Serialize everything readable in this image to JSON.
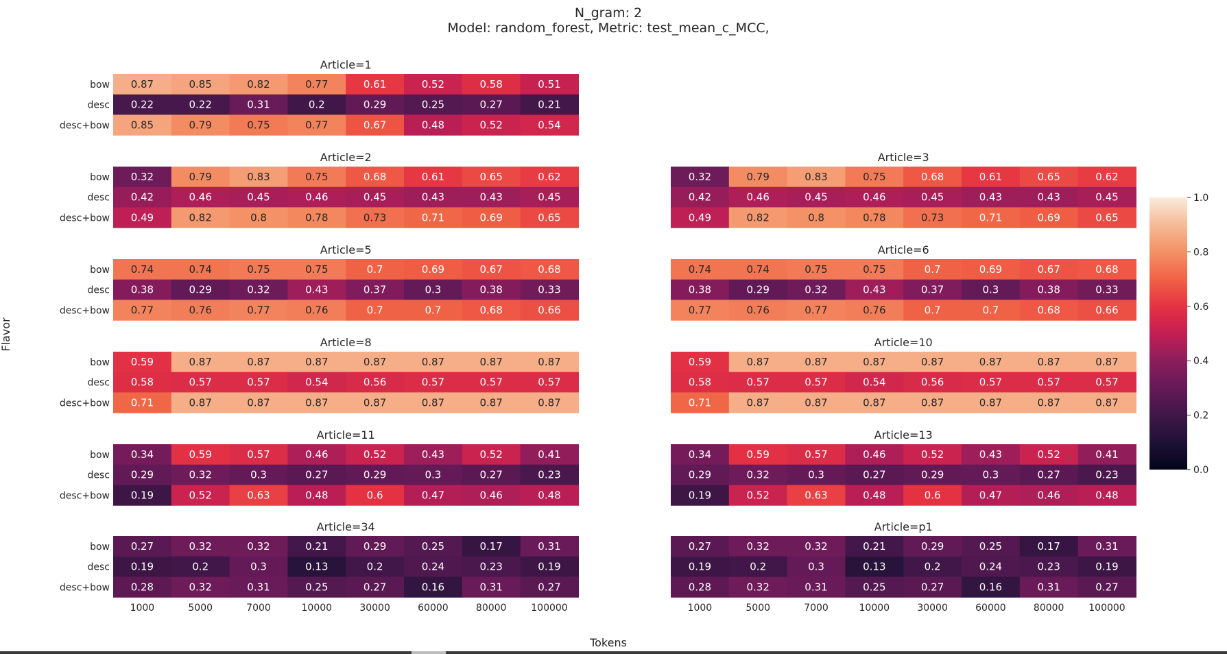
{
  "chart_data": {
    "type": "heatmap",
    "title_lines": [
      "N_gram: 2",
      "Model: random_forest, Metric: test_mean_c_MCC,"
    ],
    "xlabel": "Tokens",
    "ylabel": "Flavor",
    "x_categories": [
      "1000",
      "5000",
      "7000",
      "10000",
      "30000",
      "60000",
      "80000",
      "100000"
    ],
    "y_categories": [
      "bow",
      "desc",
      "desc+bow"
    ],
    "color_range": [
      0.0,
      1.0
    ],
    "colorbar_ticks": [
      "0.0",
      "0.2",
      "0.4",
      "0.6",
      "0.8",
      "1.0"
    ],
    "panels": [
      {
        "title": "Article=1",
        "values": [
          [
            0.87,
            0.85,
            0.82,
            0.77,
            0.61,
            0.52,
            0.58,
            0.51
          ],
          [
            0.22,
            0.22,
            0.31,
            0.2,
            0.29,
            0.25,
            0.27,
            0.21
          ],
          [
            0.85,
            0.79,
            0.75,
            0.77,
            0.67,
            0.48,
            0.52,
            0.54
          ]
        ]
      },
      {
        "title": "Article=2",
        "values": [
          [
            0.32,
            0.79,
            0.83,
            0.75,
            0.68,
            0.61,
            0.65,
            0.62
          ],
          [
            0.42,
            0.46,
            0.45,
            0.46,
            0.45,
            0.43,
            0.43,
            0.45
          ],
          [
            0.49,
            0.82,
            0.8,
            0.78,
            0.73,
            0.71,
            0.69,
            0.65
          ]
        ]
      },
      {
        "title": "Article=3",
        "values": [
          [
            0.32,
            0.79,
            0.83,
            0.75,
            0.68,
            0.61,
            0.65,
            0.62
          ],
          [
            0.42,
            0.46,
            0.45,
            0.46,
            0.45,
            0.43,
            0.43,
            0.45
          ],
          [
            0.49,
            0.82,
            0.8,
            0.78,
            0.73,
            0.71,
            0.69,
            0.65
          ]
        ]
      },
      {
        "title": "Article=5",
        "values": [
          [
            0.74,
            0.74,
            0.75,
            0.75,
            0.7,
            0.69,
            0.67,
            0.68
          ],
          [
            0.38,
            0.29,
            0.32,
            0.43,
            0.37,
            0.3,
            0.38,
            0.33
          ],
          [
            0.77,
            0.76,
            0.77,
            0.76,
            0.7,
            0.7,
            0.68,
            0.66
          ]
        ]
      },
      {
        "title": "Article=6",
        "values": [
          [
            0.74,
            0.74,
            0.75,
            0.75,
            0.7,
            0.69,
            0.67,
            0.68
          ],
          [
            0.38,
            0.29,
            0.32,
            0.43,
            0.37,
            0.3,
            0.38,
            0.33
          ],
          [
            0.77,
            0.76,
            0.77,
            0.76,
            0.7,
            0.7,
            0.68,
            0.66
          ]
        ]
      },
      {
        "title": "Article=8",
        "values": [
          [
            0.59,
            0.87,
            0.87,
            0.87,
            0.87,
            0.87,
            0.87,
            0.87
          ],
          [
            0.58,
            0.57,
            0.57,
            0.54,
            0.56,
            0.57,
            0.57,
            0.57
          ],
          [
            0.71,
            0.87,
            0.87,
            0.87,
            0.87,
            0.87,
            0.87,
            0.87
          ]
        ]
      },
      {
        "title": "Article=10",
        "values": [
          [
            0.59,
            0.87,
            0.87,
            0.87,
            0.87,
            0.87,
            0.87,
            0.87
          ],
          [
            0.58,
            0.57,
            0.57,
            0.54,
            0.56,
            0.57,
            0.57,
            0.57
          ],
          [
            0.71,
            0.87,
            0.87,
            0.87,
            0.87,
            0.87,
            0.87,
            0.87
          ]
        ]
      },
      {
        "title": "Article=11",
        "values": [
          [
            0.34,
            0.59,
            0.57,
            0.46,
            0.52,
            0.43,
            0.52,
            0.41
          ],
          [
            0.29,
            0.32,
            0.3,
            0.27,
            0.29,
            0.3,
            0.27,
            0.23
          ],
          [
            0.19,
            0.52,
            0.63,
            0.48,
            0.6,
            0.47,
            0.46,
            0.48
          ]
        ]
      },
      {
        "title": "Article=13",
        "values": [
          [
            0.34,
            0.59,
            0.57,
            0.46,
            0.52,
            0.43,
            0.52,
            0.41
          ],
          [
            0.29,
            0.32,
            0.3,
            0.27,
            0.29,
            0.3,
            0.27,
            0.23
          ],
          [
            0.19,
            0.52,
            0.63,
            0.48,
            0.6,
            0.47,
            0.46,
            0.48
          ]
        ]
      },
      {
        "title": "Article=34",
        "values": [
          [
            0.27,
            0.32,
            0.32,
            0.21,
            0.29,
            0.25,
            0.17,
            0.31
          ],
          [
            0.19,
            0.2,
            0.3,
            0.13,
            0.2,
            0.24,
            0.23,
            0.19
          ],
          [
            0.28,
            0.32,
            0.31,
            0.25,
            0.27,
            0.16,
            0.31,
            0.27
          ]
        ]
      },
      {
        "title": "Article=p1",
        "values": [
          [
            0.27,
            0.32,
            0.32,
            0.21,
            0.29,
            0.25,
            0.17,
            0.31
          ],
          [
            0.19,
            0.2,
            0.3,
            0.13,
            0.2,
            0.24,
            0.23,
            0.19
          ],
          [
            0.28,
            0.32,
            0.31,
            0.25,
            0.27,
            0.16,
            0.31,
            0.27
          ]
        ]
      }
    ]
  }
}
